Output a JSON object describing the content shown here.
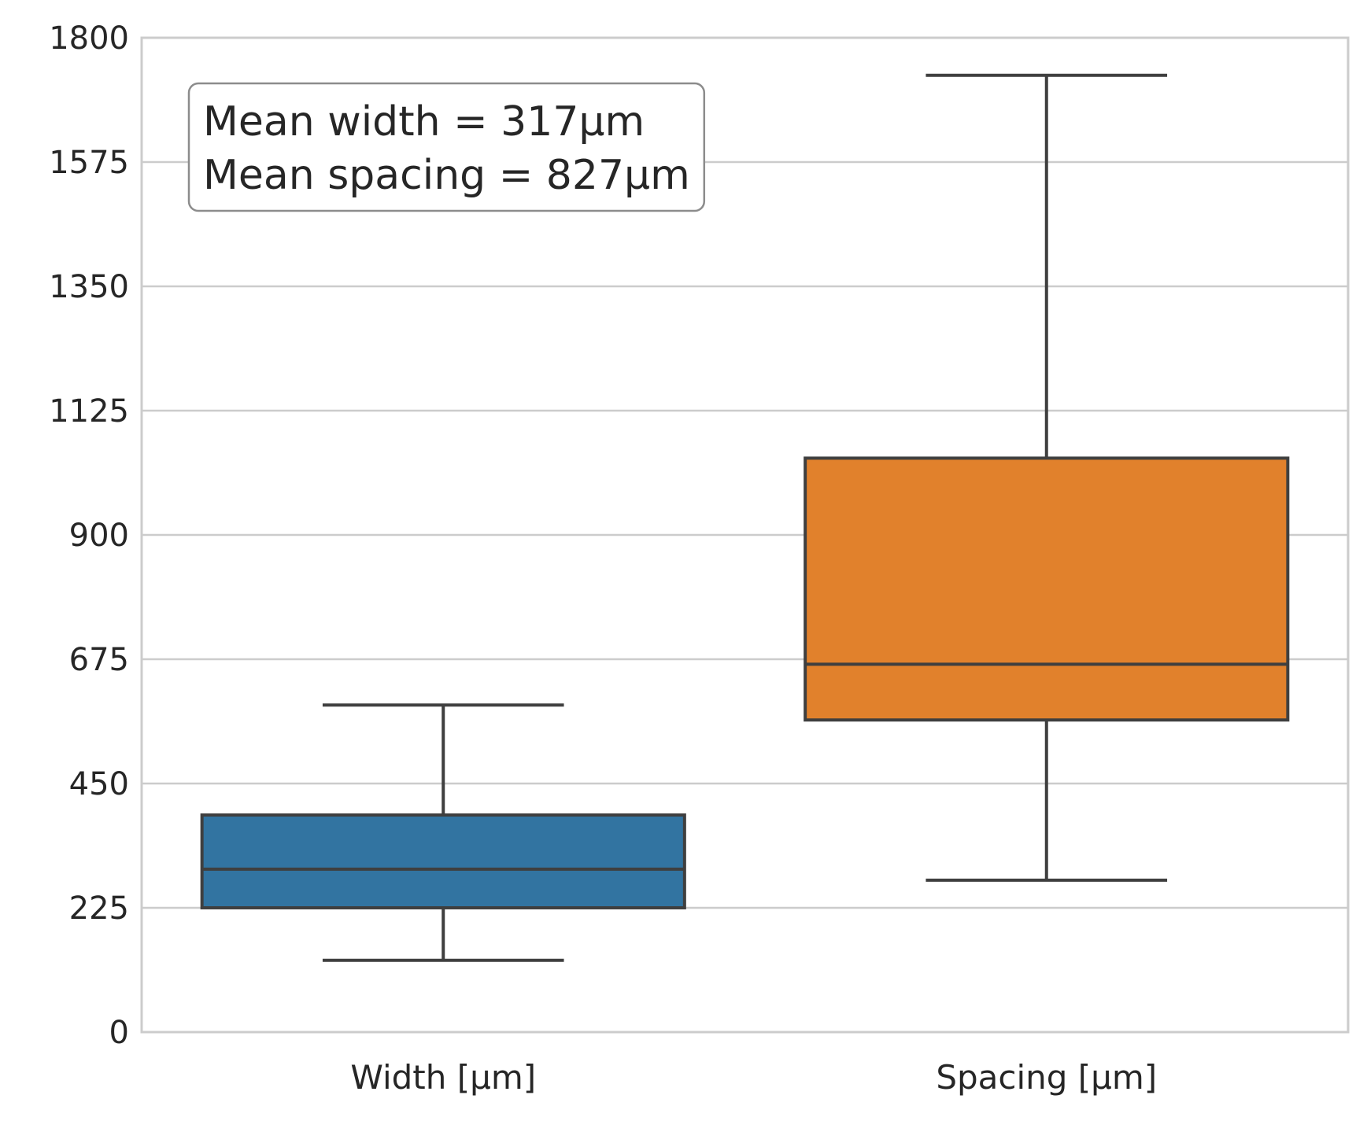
{
  "chart_data": {
    "type": "box",
    "title": "",
    "xlabel": "",
    "ylabel": "",
    "ylim": [
      0,
      1800
    ],
    "yticks": [
      0,
      225,
      450,
      675,
      900,
      1125,
      1350,
      1575,
      1800
    ],
    "ytick_labels": [
      "0",
      "225",
      "450",
      "675",
      "900",
      "1125",
      "1350",
      "1575",
      "1800"
    ],
    "grid": "horizontal",
    "categories": [
      "Width [μm]",
      "Spacing [μm]"
    ],
    "boxes": [
      {
        "category": "Width [μm]",
        "whisker_low": 130,
        "q1": 225,
        "median": 295,
        "q3": 393,
        "whisker_high": 592,
        "color": "#3274a1"
      },
      {
        "category": "Spacing [μm]",
        "whisker_low": 275,
        "q1": 565,
        "median": 666,
        "q3": 1039,
        "whisker_high": 1732,
        "color": "#e1812c"
      }
    ],
    "annotation": {
      "lines": [
        "Mean width = 317μm",
        "Mean spacing = 827μm"
      ],
      "placement": "top-left"
    }
  }
}
